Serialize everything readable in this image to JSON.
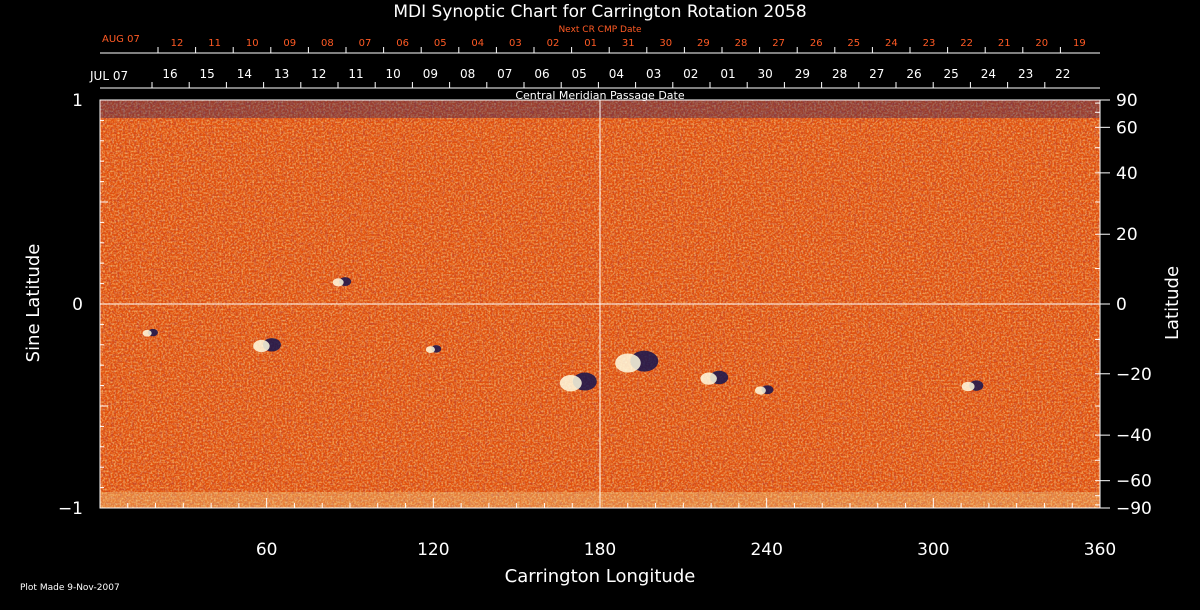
{
  "chart_data": {
    "type": "heatmap",
    "title": "MDI Synoptic Chart for Carrington Rotation 2058",
    "xlabel": "Carrington Longitude",
    "ylabel_left": "Sine Latitude",
    "ylabel_right": "Latitude",
    "xlim": [
      0,
      360
    ],
    "ylim": [
      -1,
      1
    ],
    "x_ticks": [
      60,
      120,
      180,
      240,
      300,
      360
    ],
    "y_left_ticks": [
      "1",
      "0",
      "−1"
    ],
    "y_left_values": [
      1,
      0,
      -1
    ],
    "y_right_ticks": [
      "90",
      "60",
      "40",
      "20",
      "0",
      "−20",
      "−40",
      "−60",
      "−90"
    ],
    "y_right_values": [
      90,
      60,
      40,
      20,
      0,
      -20,
      -40,
      -60,
      -90
    ],
    "cmp_caption": "Central Meridian Passage Date",
    "cmp_start": "JUL 07",
    "cmp_days": [
      "16",
      "15",
      "14",
      "13",
      "12",
      "11",
      "10",
      "09",
      "08",
      "07",
      "06",
      "05",
      "04",
      "03",
      "02",
      "01",
      "30",
      "29",
      "28",
      "27",
      "26",
      "25",
      "24",
      "23",
      "22"
    ],
    "next_cmp_caption": "Next CR CMP Date",
    "next_cmp_start": "AUG 07",
    "next_cmp_days": [
      "12",
      "11",
      "10",
      "09",
      "08",
      "07",
      "06",
      "05",
      "04",
      "03",
      "02",
      "01",
      "31",
      "30",
      "29",
      "28",
      "27",
      "26",
      "25",
      "24",
      "23",
      "22",
      "21",
      "20",
      "19"
    ],
    "active_regions": [
      {
        "lon": 18,
        "sinlat": -0.14,
        "r": 0.05
      },
      {
        "lon": 60,
        "sinlat": -0.2,
        "r": 0.09
      },
      {
        "lon": 87,
        "sinlat": 0.11,
        "r": 0.06
      },
      {
        "lon": 120,
        "sinlat": -0.22,
        "r": 0.05
      },
      {
        "lon": 172,
        "sinlat": -0.38,
        "r": 0.12
      },
      {
        "lon": 193,
        "sinlat": -0.28,
        "r": 0.14
      },
      {
        "lon": 221,
        "sinlat": -0.36,
        "r": 0.09
      },
      {
        "lon": 239,
        "sinlat": -0.42,
        "r": 0.06
      },
      {
        "lon": 314,
        "sinlat": -0.4,
        "r": 0.07
      }
    ]
  },
  "footer": {
    "plot_made": "Plot Made  9-Nov-2007"
  },
  "colors": {
    "background": "#000000",
    "map_base": "#e2500c",
    "next_cmp": "#ff5a24",
    "axis": "#ffffff"
  }
}
